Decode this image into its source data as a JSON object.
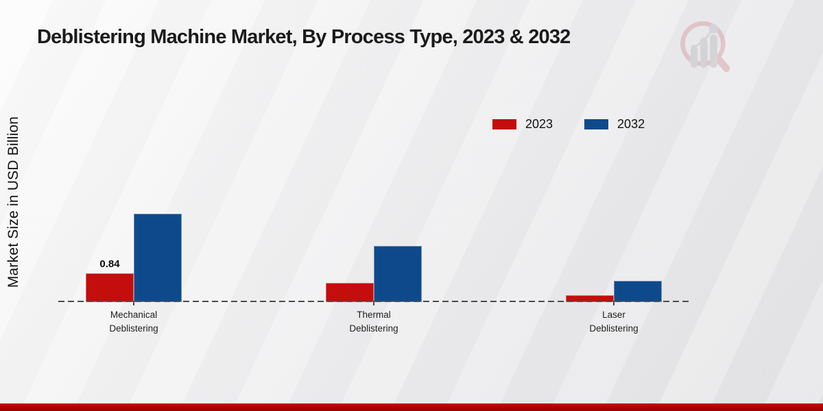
{
  "chart_data": {
    "type": "bar",
    "title": "Deblistering Machine Market, By Process Type, 2023 & 2032",
    "ylabel": "Market Size in USD Billion",
    "xlabel": "",
    "categories": [
      "Mechanical\nDeblistering",
      "Thermal\nDeblistering",
      "Laser\nDeblistering"
    ],
    "series": [
      {
        "name": "2023",
        "color": "#c40d0d",
        "values": [
          0.84,
          0.55,
          0.2
        ]
      },
      {
        "name": "2032",
        "color": "#0e4a8b",
        "values": [
          2.58,
          1.64,
          0.62
        ]
      }
    ],
    "annotations": [
      {
        "text": "0.84",
        "series_index": 0,
        "category_index": 0
      }
    ],
    "ylim": [
      0,
      3.2
    ],
    "grid": false,
    "baseline_style": "dashed",
    "legend_position": "upper-right"
  },
  "colors": {
    "bar_2023": "#c40d0d",
    "bar_2032": "#0e4a8b",
    "footer_accent": "#b80404",
    "baseline": "#4c4c4c",
    "watermark_ring": "#d9a7ac",
    "watermark_bars": "#c4c4c8"
  },
  "watermark": {
    "icon": "magnifier-bar-chart-logo"
  }
}
